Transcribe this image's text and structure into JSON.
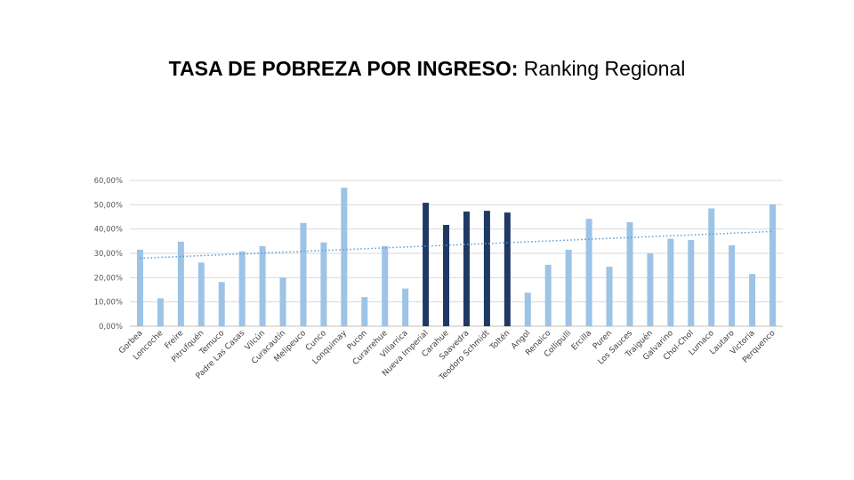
{
  "title": {
    "bold_part": "TASA DE POBREZA POR INGRESO:",
    "regular_part": " Ranking Regional"
  },
  "colors": {
    "default_bar": "#9dc3e6",
    "highlight_bar": "#1f3864",
    "trendline": "#5b9bd5",
    "gridline": "#d9d9d9",
    "axis": "#bfbfbf"
  },
  "chart_data": {
    "type": "bar",
    "title": "",
    "xlabel": "",
    "ylabel": "",
    "ylim": [
      0,
      60
    ],
    "yticks": [
      0,
      10,
      20,
      30,
      40,
      50,
      60
    ],
    "ytick_labels": [
      "0,00%",
      "10,00%",
      "20,00%",
      "30,00%",
      "40,00%",
      "50,00%",
      "60,00%"
    ],
    "grid": true,
    "trendline": "linear (dotted)",
    "categories": [
      "Gorbea",
      "Loncoche",
      "Freire",
      "Pitrufquén",
      "Temuco",
      "Padre Las Casas",
      "Vilcún",
      "Curacautín",
      "Melipeuco",
      "Cunco",
      "Lonquimay",
      "Pucon",
      "Curarrehue",
      "Villarrica",
      "Nueva Imperial",
      "Carahue",
      "Saavedra",
      "Teodoro Schmidt",
      "Toltén",
      "Angol",
      "Renaico",
      "Collipulli",
      "Ercilla",
      "Puren",
      "Los Sauces",
      "Traiguén",
      "Galvarino",
      "Chol-Chol",
      "Lumaco",
      "Lautaro",
      "Victoria",
      "Perquenco"
    ],
    "values": [
      31.5,
      11.5,
      34.8,
      26.2,
      18.2,
      30.8,
      33.0,
      20.0,
      42.5,
      34.5,
      57.0,
      12.0,
      33.0,
      15.5,
      50.8,
      41.7,
      47.2,
      47.5,
      46.8,
      13.8,
      25.3,
      31.5,
      44.2,
      24.5,
      42.8,
      30.0,
      36.0,
      35.5,
      48.5,
      33.3,
      21.5,
      50.2
    ],
    "highlighted": [
      "Nueva Imperial",
      "Carahue",
      "Saavedra",
      "Teodoro Schmidt",
      "Toltén"
    ]
  }
}
